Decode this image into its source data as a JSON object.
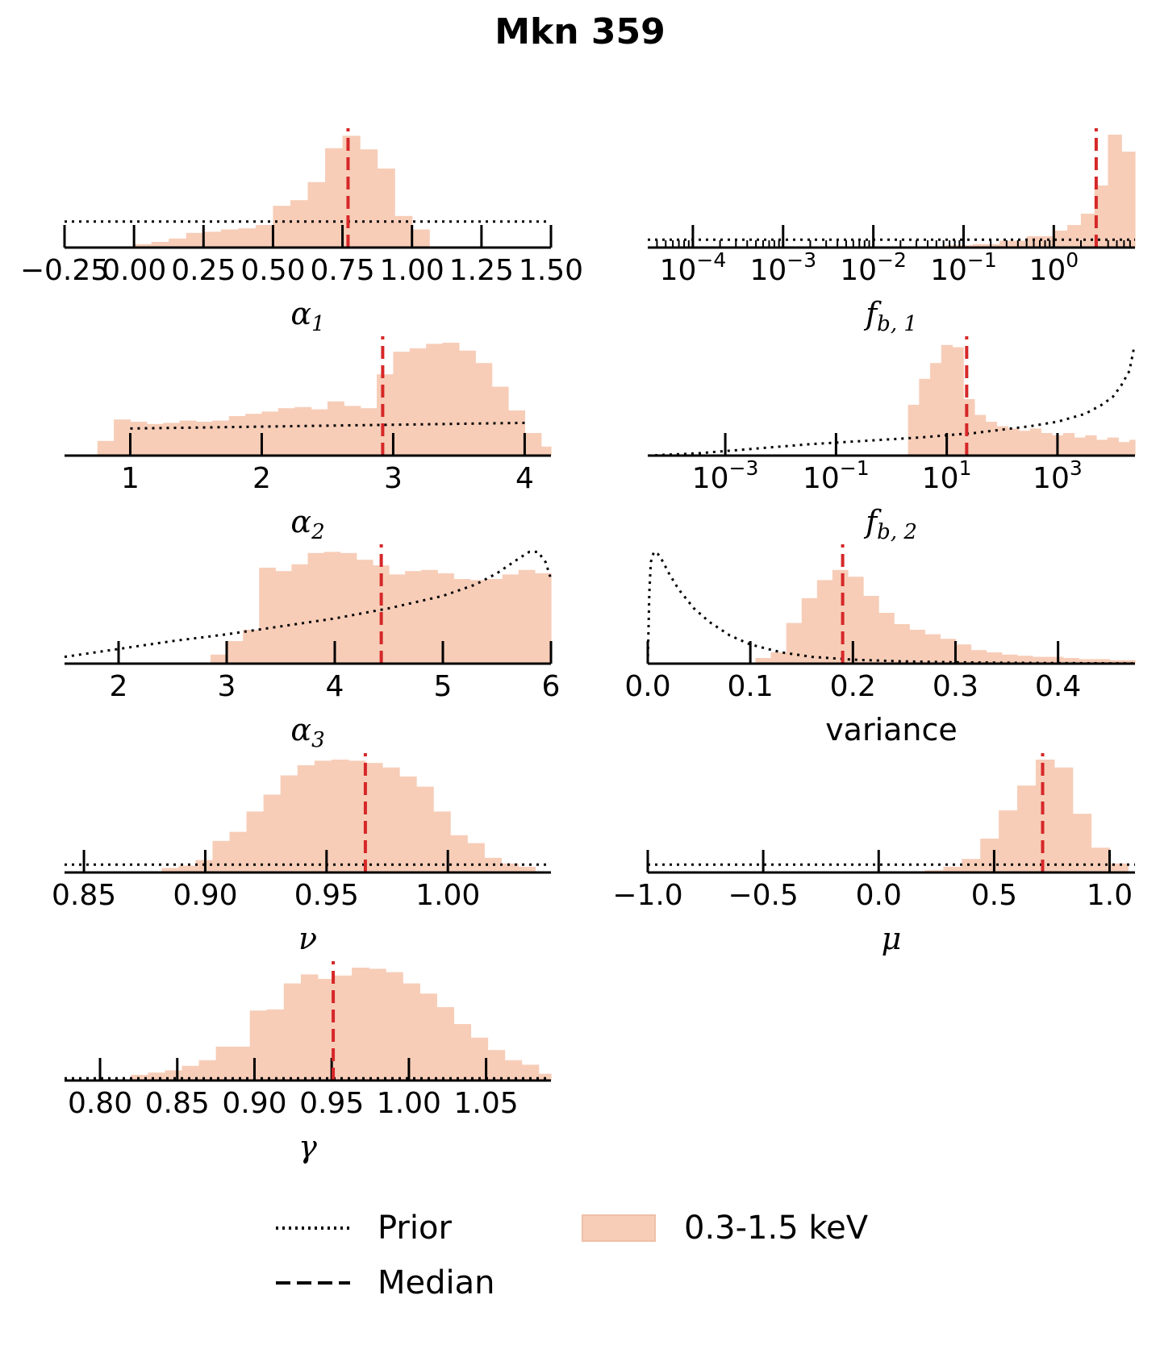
{
  "figure": {
    "title": "Mkn 359"
  },
  "legend": {
    "placement": "bottom-center",
    "items": [
      {
        "label": "Prior",
        "style": "dotted",
        "color": "#000000"
      },
      {
        "label": "Median",
        "style": "dashed",
        "color": "#000000"
      },
      {
        "label": "0.3-1.5 keV",
        "style": "patch",
        "color": "#f7cdb8"
      }
    ]
  },
  "colors": {
    "histogram": "#f7cdb8",
    "median": "#d62728",
    "prior": "#000000",
    "axis": "#000000"
  },
  "chart_data": [
    {
      "type": "histogram",
      "name": "alpha1",
      "xlabel": "α",
      "xlabel_sub": "1",
      "scale": "linear",
      "xlim": [
        -0.25,
        1.5
      ],
      "xticks": [
        -0.25,
        0.0,
        0.25,
        0.5,
        0.75,
        1.0,
        1.25,
        1.5
      ],
      "xticklabels": [
        "−0.25",
        "0.00",
        "0.25",
        "0.50",
        "0.75",
        "1.00",
        "1.25",
        "1.50"
      ],
      "bin_edges": [
        0.0,
        0.0625,
        0.125,
        0.1875,
        0.25,
        0.3125,
        0.375,
        0.4375,
        0.5,
        0.5625,
        0.625,
        0.6875,
        0.75,
        0.8125,
        0.875,
        0.9375,
        1.0,
        1.0625
      ],
      "counts": [
        0.03,
        0.05,
        0.08,
        0.13,
        0.14,
        0.16,
        0.17,
        0.2,
        0.37,
        0.42,
        0.58,
        0.88,
        0.99,
        0.87,
        0.7,
        0.28,
        0.16
      ],
      "median": 0.77,
      "prior": {
        "x": [
          -0.25,
          1.5
        ],
        "y": [
          0.23,
          0.23
        ]
      }
    },
    {
      "type": "histogram",
      "name": "fb1",
      "xlabel": "f",
      "xlabel_sub": "b, 1",
      "scale": "log",
      "xlim": [
        -4.5,
        0.9
      ],
      "xticks": [
        -4,
        -3,
        -2,
        -1,
        0
      ],
      "xticklabels": [
        {
          "base": "10",
          "exp": "−4"
        },
        {
          "base": "10",
          "exp": "−3"
        },
        {
          "base": "10",
          "exp": "−2"
        },
        {
          "base": "10",
          "exp": "−1"
        },
        {
          "base": "10",
          "exp": "0"
        }
      ],
      "minor_ticks": true,
      "bin_edges": [
        -1.2,
        -0.9,
        -0.6,
        -0.3,
        0.0,
        0.15,
        0.3,
        0.45,
        0.6,
        0.75,
        0.9
      ],
      "counts": [
        0.02,
        0.03,
        0.06,
        0.1,
        0.15,
        0.2,
        0.3,
        0.55,
        1.0,
        0.85
      ],
      "median": 0.47,
      "prior": {
        "x": [
          -4.5,
          0.9
        ],
        "y": [
          0.07,
          0.07
        ]
      }
    },
    {
      "type": "histogram",
      "name": "alpha2",
      "xlabel": "α",
      "xlabel_sub": "2",
      "scale": "linear",
      "xlim": [
        0.5,
        4.2
      ],
      "xticks": [
        1,
        2,
        3,
        4
      ],
      "xticklabels": [
        "1",
        "2",
        "3",
        "4"
      ],
      "bin_edges": [
        0.75,
        0.875,
        1.0,
        1.125,
        1.25,
        1.375,
        1.5,
        1.625,
        1.75,
        1.875,
        2.0,
        2.125,
        2.25,
        2.375,
        2.5,
        2.625,
        2.75,
        2.875,
        3.0,
        3.125,
        3.25,
        3.375,
        3.5,
        3.625,
        3.75,
        3.875,
        4.0,
        4.125,
        4.2
      ],
      "counts": [
        0.13,
        0.32,
        0.3,
        0.28,
        0.29,
        0.31,
        0.3,
        0.31,
        0.35,
        0.37,
        0.39,
        0.42,
        0.43,
        0.41,
        0.48,
        0.44,
        0.42,
        0.72,
        0.92,
        0.95,
        0.99,
        1.0,
        0.93,
        0.82,
        0.61,
        0.4,
        0.2,
        0.08
      ],
      "median": 2.92,
      "prior": {
        "x": [
          1.0,
          4.0
        ],
        "y": [
          0.24,
          0.29
        ]
      }
    },
    {
      "type": "histogram",
      "name": "fb2",
      "xlabel": "f",
      "xlabel_sub": "b, 2",
      "scale": "log",
      "xlim": [
        -4.4,
        4.4
      ],
      "xticks": [
        -3,
        -1,
        1,
        3
      ],
      "xticklabels": [
        {
          "base": "10",
          "exp": "−3"
        },
        {
          "base": "10",
          "exp": "−1"
        },
        {
          "base": "10",
          "exp": "1"
        },
        {
          "base": "10",
          "exp": "3"
        }
      ],
      "bin_edges": [
        0.3,
        0.5,
        0.7,
        0.9,
        1.1,
        1.3,
        1.5,
        1.7,
        1.9,
        2.1,
        2.3,
        2.5,
        2.7,
        2.9,
        3.1,
        3.3,
        3.5,
        3.7,
        3.9,
        4.1,
        4.3,
        4.4
      ],
      "counts": [
        0.45,
        0.68,
        0.82,
        0.98,
        0.96,
        0.5,
        0.36,
        0.3,
        0.26,
        0.24,
        0.22,
        0.24,
        0.2,
        0.18,
        0.2,
        0.16,
        0.18,
        0.14,
        0.16,
        0.12,
        0.14
      ],
      "median": 1.36,
      "prior": {
        "x": [
          -4.4,
          -3.5,
          -2.5,
          -1.5,
          -0.5,
          0.5,
          1.5,
          2.5,
          3.0,
          3.5,
          3.8,
          4.0,
          4.15,
          4.3,
          4.38
        ],
        "y": [
          0.0,
          0.02,
          0.06,
          0.1,
          0.13,
          0.16,
          0.2,
          0.26,
          0.3,
          0.37,
          0.45,
          0.52,
          0.62,
          0.75,
          0.95
        ]
      }
    },
    {
      "type": "histogram",
      "name": "alpha3",
      "xlabel": "α",
      "xlabel_sub": "3",
      "scale": "linear",
      "xlim": [
        1.5,
        6.0
      ],
      "xticks": [
        2,
        3,
        4,
        5,
        6
      ],
      "xticklabels": [
        "2",
        "3",
        "4",
        "5",
        "6"
      ],
      "bin_edges": [
        2.85,
        3.0,
        3.15,
        3.3,
        3.45,
        3.6,
        3.75,
        3.9,
        4.05,
        4.2,
        4.35,
        4.5,
        4.65,
        4.8,
        4.95,
        5.1,
        5.25,
        5.4,
        5.55,
        5.7,
        5.85,
        6.0
      ],
      "counts": [
        0.08,
        0.2,
        0.3,
        0.85,
        0.82,
        0.88,
        0.98,
        0.99,
        0.98,
        0.92,
        0.87,
        0.79,
        0.82,
        0.83,
        0.8,
        0.75,
        0.74,
        0.75,
        0.79,
        0.83,
        0.8
      ],
      "median": 4.43,
      "prior": {
        "x": [
          1.5,
          2.5,
          3.0,
          3.5,
          4.0,
          4.5,
          5.0,
          5.3,
          5.5,
          5.7,
          5.8,
          5.88,
          5.95,
          6.0
        ],
        "y": [
          0.06,
          0.2,
          0.26,
          0.33,
          0.4,
          0.49,
          0.6,
          0.7,
          0.8,
          0.93,
          0.99,
          0.99,
          0.9,
          0.75
        ]
      }
    },
    {
      "type": "histogram",
      "name": "variance",
      "xlabel": "variance",
      "xlabel_sub": "",
      "scale": "linear",
      "xlim": [
        0.0,
        0.475
      ],
      "xticks": [
        0.0,
        0.1,
        0.2,
        0.3,
        0.4
      ],
      "xticklabels": [
        "0.0",
        "0.1",
        "0.2",
        "0.3",
        "0.4"
      ],
      "bin_edges": [
        0.105,
        0.12,
        0.135,
        0.15,
        0.165,
        0.18,
        0.195,
        0.21,
        0.225,
        0.24,
        0.255,
        0.27,
        0.285,
        0.3,
        0.315,
        0.33,
        0.345,
        0.36,
        0.375,
        0.39,
        0.405,
        0.42,
        0.435,
        0.45,
        0.465,
        0.475
      ],
      "counts": [
        0.05,
        0.1,
        0.36,
        0.58,
        0.74,
        0.83,
        0.77,
        0.6,
        0.45,
        0.35,
        0.3,
        0.26,
        0.22,
        0.17,
        0.12,
        0.1,
        0.08,
        0.07,
        0.06,
        0.06,
        0.05,
        0.04,
        0.04,
        0.03,
        0.03
      ],
      "median": 0.19,
      "prior": {
        "x": [
          0.0,
          0.0015,
          0.003,
          0.006,
          0.01,
          0.015,
          0.02,
          0.03,
          0.045,
          0.06,
          0.08,
          0.1,
          0.13,
          0.16,
          0.2,
          0.25,
          0.3,
          0.35,
          0.4,
          0.45,
          0.475
        ],
        "y": [
          0.0,
          0.62,
          0.9,
          0.99,
          0.97,
          0.9,
          0.81,
          0.66,
          0.49,
          0.37,
          0.25,
          0.17,
          0.1,
          0.06,
          0.035,
          0.02,
          0.012,
          0.008,
          0.005,
          0.003,
          0.002
        ]
      }
    },
    {
      "type": "histogram",
      "name": "nu",
      "xlabel": "ν",
      "xlabel_sub": "",
      "scale": "linear",
      "xlim": [
        0.842,
        1.0425
      ],
      "xticks": [
        0.85,
        0.9,
        0.95,
        1.0
      ],
      "xticklabels": [
        "0.85",
        "0.90",
        "0.95",
        "1.00"
      ],
      "bin_edges": [
        0.882,
        0.889,
        0.896,
        0.903,
        0.91,
        0.917,
        0.924,
        0.931,
        0.938,
        0.945,
        0.952,
        0.959,
        0.966,
        0.973,
        0.98,
        0.987,
        0.994,
        1.001,
        1.008,
        1.015,
        1.022,
        1.029,
        1.036
      ],
      "counts": [
        0.04,
        0.06,
        0.11,
        0.28,
        0.36,
        0.54,
        0.69,
        0.86,
        0.95,
        0.99,
        1.0,
        0.99,
        0.97,
        0.93,
        0.85,
        0.76,
        0.54,
        0.33,
        0.26,
        0.13,
        0.08,
        0.05
      ],
      "median": 0.966,
      "prior": {
        "x": [
          0.842,
          1.0425
        ],
        "y": [
          0.07,
          0.07
        ]
      }
    },
    {
      "type": "histogram",
      "name": "mu",
      "xlabel": "μ",
      "xlabel_sub": "",
      "scale": "linear",
      "xlim": [
        -1.0,
        1.11
      ],
      "xticks": [
        -1.0,
        -0.5,
        0.0,
        0.5,
        1.0
      ],
      "xticklabels": [
        "−1.0",
        "−0.5",
        "0.0",
        "0.5",
        "1.0"
      ],
      "bin_edges": [
        0.2,
        0.28,
        0.36,
        0.44,
        0.52,
        0.6,
        0.68,
        0.76,
        0.84,
        0.92,
        1.0,
        1.08
      ],
      "counts": [
        0.02,
        0.05,
        0.12,
        0.3,
        0.55,
        0.77,
        1.0,
        0.93,
        0.52,
        0.22,
        0.08
      ],
      "median": 0.71,
      "prior": {
        "x": [
          -1.0,
          1.11
        ],
        "y": [
          0.07,
          0.07
        ]
      }
    },
    {
      "type": "histogram",
      "name": "gamma",
      "xlabel": "γ",
      "xlabel_sub": "",
      "scale": "linear",
      "xlim": [
        0.777,
        1.092
      ],
      "xticks": [
        0.8,
        0.85,
        0.9,
        0.95,
        1.0,
        1.05
      ],
      "xticklabels": [
        "0.80",
        "0.85",
        "0.90",
        "0.95",
        "1.00",
        "1.05"
      ],
      "bin_edges": [
        0.82,
        0.831,
        0.842,
        0.853,
        0.864,
        0.875,
        0.886,
        0.897,
        0.908,
        0.919,
        0.93,
        0.941,
        0.952,
        0.963,
        0.974,
        0.985,
        0.996,
        1.007,
        1.018,
        1.029,
        1.04,
        1.051,
        1.062,
        1.073,
        1.084,
        1.092
      ],
      "counts": [
        0.05,
        0.07,
        0.09,
        0.13,
        0.18,
        0.3,
        0.3,
        0.62,
        0.63,
        0.86,
        0.94,
        0.9,
        0.93,
        1.0,
        0.99,
        0.96,
        0.86,
        0.77,
        0.65,
        0.5,
        0.38,
        0.27,
        0.18,
        0.14,
        0.06
      ],
      "median": 0.951,
      "prior": {
        "x": [
          0.777,
          1.092
        ],
        "y": [
          0.02,
          0.02
        ]
      }
    }
  ]
}
